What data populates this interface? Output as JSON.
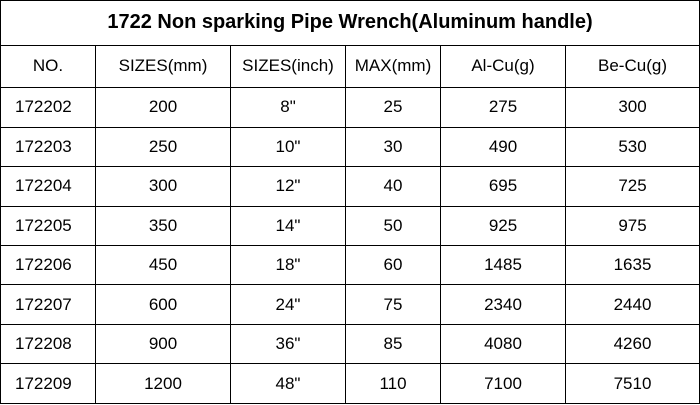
{
  "table": {
    "title": "1722  Non sparking Pipe Wrench(Aluminum handle)",
    "header": [
      "NO.",
      "SIZES(mm)",
      "SIZES(inch)",
      "MAX(mm)",
      "Al-Cu(g)",
      "Be-Cu(g)"
    ],
    "rows": [
      [
        "172202",
        "200",
        "8\"",
        "25",
        "275",
        "300"
      ],
      [
        "172203",
        "250",
        "10\"",
        "30",
        "490",
        "530"
      ],
      [
        "172204",
        "300",
        "12\"",
        "40",
        "695",
        "725"
      ],
      [
        "172205",
        "350",
        "14\"",
        "50",
        "925",
        "975"
      ],
      [
        "172206",
        "450",
        "18\"",
        "60",
        "1485",
        "1635"
      ],
      [
        "172207",
        "600",
        "24\"",
        "75",
        "2340",
        "2440"
      ],
      [
        "172208",
        "900",
        "36\"",
        "85",
        "4080",
        "4260"
      ],
      [
        "172209",
        "1200",
        "48\"",
        "110",
        "7100",
        "7510"
      ]
    ]
  }
}
